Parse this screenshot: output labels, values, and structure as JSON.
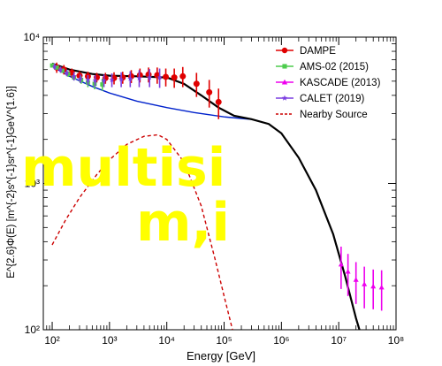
{
  "chart_data": {
    "type": "scatter",
    "title": "",
    "xlabel": "Energy [GeV]",
    "ylabel": "E^{2.6}Φ(E)  [m^{-2}s^{-1}sr^{-1}GeV^{1.6}]",
    "xscale": "log",
    "yscale": "log",
    "xlim": [
      70,
      100000000
    ],
    "ylim": [
      100,
      10000
    ],
    "x_ticks": [
      100,
      1000,
      10000,
      100000,
      1000000,
      10000000,
      100000000
    ],
    "x_tick_labels": [
      "10²",
      "10³",
      "10⁴",
      "10⁵",
      "10⁶",
      "10⁷",
      "10⁸"
    ],
    "y_ticks": [
      100,
      1000,
      10000
    ],
    "y_tick_labels": [
      "10²",
      "10³",
      "10⁴"
    ],
    "legend_position": "top-right",
    "grid": false,
    "series": [
      {
        "name": "DAMPE",
        "color": "#e00000",
        "marker": "circle",
        "points": [
          {
            "x": 120,
            "y": 6200,
            "err": 500
          },
          {
            "x": 160,
            "y": 6000,
            "err": 450
          },
          {
            "x": 220,
            "y": 5700,
            "err": 400
          },
          {
            "x": 300,
            "y": 5450,
            "err": 400
          },
          {
            "x": 420,
            "y": 5400,
            "err": 400
          },
          {
            "x": 600,
            "y": 5300,
            "err": 400
          },
          {
            "x": 850,
            "y": 5250,
            "err": 450
          },
          {
            "x": 1200,
            "y": 5250,
            "err": 500
          },
          {
            "x": 1700,
            "y": 5300,
            "err": 500
          },
          {
            "x": 2400,
            "y": 5400,
            "err": 550
          },
          {
            "x": 3400,
            "y": 5500,
            "err": 600
          },
          {
            "x": 4800,
            "y": 5550,
            "err": 650
          },
          {
            "x": 6800,
            "y": 5500,
            "err": 700
          },
          {
            "x": 9600,
            "y": 5350,
            "err": 750
          },
          {
            "x": 13500,
            "y": 5300,
            "err": 800
          },
          {
            "x": 19000,
            "y": 5400,
            "err": 850
          },
          {
            "x": 33000,
            "y": 4800,
            "err": 900
          },
          {
            "x": 55000,
            "y": 4200,
            "err": 900
          },
          {
            "x": 80000,
            "y": 3600,
            "err": 850
          }
        ]
      },
      {
        "name": "AMS-02 (2015)",
        "color": "#4dcc4d",
        "marker": "square",
        "points": [
          {
            "x": 100,
            "y": 6400,
            "err": 200
          },
          {
            "x": 120,
            "y": 6200,
            "err": 200
          },
          {
            "x": 150,
            "y": 5900,
            "err": 200
          },
          {
            "x": 190,
            "y": 5600,
            "err": 250
          },
          {
            "x": 240,
            "y": 5300,
            "err": 250
          },
          {
            "x": 320,
            "y": 5100,
            "err": 300
          },
          {
            "x": 420,
            "y": 4900,
            "err": 350
          },
          {
            "x": 550,
            "y": 4800,
            "err": 400
          },
          {
            "x": 750,
            "y": 4750,
            "err": 450
          }
        ]
      },
      {
        "name": "KASCADE (2013)",
        "color": "#ee00ee",
        "marker": "triangle",
        "points": [
          {
            "x": 11000000,
            "y": 280,
            "err": 90
          },
          {
            "x": 14500000,
            "y": 250,
            "err": 80
          },
          {
            "x": 20000000,
            "y": 220,
            "err": 70
          },
          {
            "x": 28000000,
            "y": 205,
            "err": 65
          },
          {
            "x": 40000000,
            "y": 198,
            "err": 60
          },
          {
            "x": 56000000,
            "y": 195,
            "err": 60
          }
        ]
      },
      {
        "name": "CALET (2019)",
        "color": "#7a3de0",
        "marker": "star",
        "points": [
          {
            "x": 110,
            "y": 6300,
            "err": 300
          },
          {
            "x": 140,
            "y": 6000,
            "err": 300
          },
          {
            "x": 180,
            "y": 5700,
            "err": 300
          },
          {
            "x": 240,
            "y": 5400,
            "err": 350
          },
          {
            "x": 310,
            "y": 5200,
            "err": 350
          },
          {
            "x": 420,
            "y": 5100,
            "err": 400
          },
          {
            "x": 560,
            "y": 5050,
            "err": 450
          },
          {
            "x": 800,
            "y": 5050,
            "err": 500
          },
          {
            "x": 1100,
            "y": 5100,
            "err": 550
          },
          {
            "x": 1600,
            "y": 5150,
            "err": 600
          },
          {
            "x": 2300,
            "y": 5200,
            "err": 650
          },
          {
            "x": 3300,
            "y": 5250,
            "err": 700
          },
          {
            "x": 5000,
            "y": 5300,
            "err": 750
          },
          {
            "x": 7500,
            "y": 5300,
            "err": 800
          }
        ]
      },
      {
        "name": "Nearby Source",
        "color": "#cc0000",
        "style": "dashed",
        "line": [
          {
            "x": 100,
            "y": 380
          },
          {
            "x": 170,
            "y": 560
          },
          {
            "x": 300,
            "y": 800
          },
          {
            "x": 600,
            "y": 1150
          },
          {
            "x": 1000,
            "y": 1450
          },
          {
            "x": 2000,
            "y": 1850
          },
          {
            "x": 4000,
            "y": 2100
          },
          {
            "x": 7000,
            "y": 2150
          },
          {
            "x": 10000,
            "y": 2000
          },
          {
            "x": 20000,
            "y": 1400
          },
          {
            "x": 40000,
            "y": 700
          },
          {
            "x": 70000,
            "y": 300
          },
          {
            "x": 100000,
            "y": 170
          },
          {
            "x": 140000,
            "y": 100
          }
        ]
      },
      {
        "name": "",
        "color": "#0022cc",
        "style": "solid",
        "line": [
          {
            "x": 100,
            "y": 6300
          },
          {
            "x": 200,
            "y": 5400
          },
          {
            "x": 500,
            "y": 4600
          },
          {
            "x": 1000,
            "y": 4150
          },
          {
            "x": 3000,
            "y": 3650
          },
          {
            "x": 10000,
            "y": 3300
          },
          {
            "x": 30000,
            "y": 3050
          },
          {
            "x": 100000,
            "y": 2850
          },
          {
            "x": 200000,
            "y": 2780
          },
          {
            "x": 300000,
            "y": 2740
          }
        ]
      },
      {
        "name": "",
        "color": "#000000",
        "style": "solid",
        "line": [
          {
            "x": 100,
            "y": 6600
          },
          {
            "x": 200,
            "y": 6000
          },
          {
            "x": 500,
            "y": 5600
          },
          {
            "x": 1000,
            "y": 5450
          },
          {
            "x": 3000,
            "y": 5400
          },
          {
            "x": 10000,
            "y": 5300
          },
          {
            "x": 20000,
            "y": 4800
          },
          {
            "x": 40000,
            "y": 4000
          },
          {
            "x": 80000,
            "y": 3300
          },
          {
            "x": 150000,
            "y": 2900
          },
          {
            "x": 300000,
            "y": 2750
          },
          {
            "x": 600000,
            "y": 2550
          },
          {
            "x": 1000000,
            "y": 2200
          },
          {
            "x": 2000000,
            "y": 1500
          },
          {
            "x": 4000000,
            "y": 900
          },
          {
            "x": 8000000,
            "y": 450
          },
          {
            "x": 13000000,
            "y": 230
          },
          {
            "x": 20000000,
            "y": 120
          },
          {
            "x": 23000000,
            "y": 100
          }
        ]
      }
    ]
  },
  "overlay_text": {
    "line1": "multisi",
    "line2": "m,i"
  }
}
